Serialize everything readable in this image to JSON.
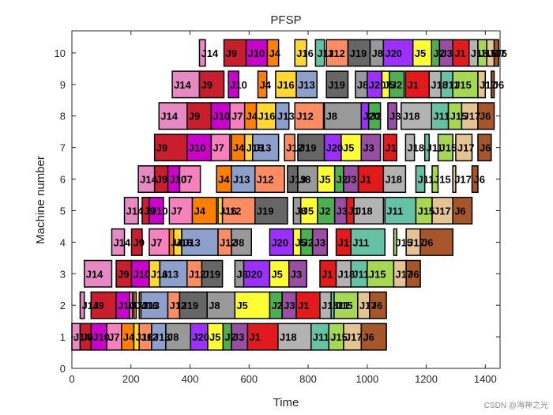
{
  "chart_data": {
    "type": "gantt",
    "title": "PFSP",
    "xlabel": "Time",
    "ylabel": "Machine number",
    "xlim": [
      0,
      1450
    ],
    "ylim": [
      0,
      10.7
    ],
    "xticks": [
      0,
      200,
      400,
      600,
      800,
      1000,
      1200,
      1400
    ],
    "yticks": [
      0,
      1,
      2,
      3,
      4,
      5,
      6,
      7,
      8,
      9,
      10
    ],
    "colors": {
      "J1": "#e31a1c",
      "J2": "#4caf50",
      "J3": "#984ea3",
      "J4": "#ff7f00",
      "J5": "#ffff33",
      "J6": "#a65628",
      "J7": "#f781bf",
      "J8": "#999999",
      "J9": "#c81e2d",
      "J10": "#cc00cc",
      "J11": "#66c2a5",
      "J12": "#fc8d62",
      "J13": "#8da0cb",
      "J14": "#e78ac3",
      "J15": "#a6d854",
      "J16": "#ffd92f",
      "J17": "#e5c494",
      "J18": "#b3b3b3",
      "J19": "#666666",
      "J20": "#9b30ff"
    },
    "tasks": [
      {
        "machine": 1,
        "job": "J14",
        "start": 0,
        "end": 28
      },
      {
        "machine": 1,
        "job": "J9",
        "start": 28,
        "end": 65
      },
      {
        "machine": 1,
        "job": "J10",
        "start": 65,
        "end": 118
      },
      {
        "machine": 1,
        "job": "J7",
        "start": 118,
        "end": 168
      },
      {
        "machine": 1,
        "job": "J4",
        "start": 168,
        "end": 210
      },
      {
        "machine": 1,
        "job": "J16",
        "start": 210,
        "end": 228
      },
      {
        "machine": 1,
        "job": "J12",
        "start": 228,
        "end": 270
      },
      {
        "machine": 1,
        "job": "J13",
        "start": 270,
        "end": 318
      },
      {
        "machine": 1,
        "job": "J8",
        "start": 318,
        "end": 402
      },
      {
        "machine": 1,
        "job": "J20",
        "start": 402,
        "end": 460
      },
      {
        "machine": 1,
        "job": "J5",
        "start": 460,
        "end": 512
      },
      {
        "machine": 1,
        "job": "J2",
        "start": 512,
        "end": 540
      },
      {
        "machine": 1,
        "job": "J3",
        "start": 540,
        "end": 595
      },
      {
        "machine": 1,
        "job": "J1",
        "start": 595,
        "end": 698
      },
      {
        "machine": 1,
        "job": "J18",
        "start": 698,
        "end": 810
      },
      {
        "machine": 1,
        "job": "J11",
        "start": 810,
        "end": 870
      },
      {
        "machine": 1,
        "job": "J15",
        "start": 870,
        "end": 920
      },
      {
        "machine": 1,
        "job": "J17",
        "start": 920,
        "end": 980
      },
      {
        "machine": 1,
        "job": "J6",
        "start": 980,
        "end": 1065
      },
      {
        "machine": 2,
        "job": "J14",
        "start": 28,
        "end": 42
      },
      {
        "machine": 2,
        "job": "J9",
        "start": 65,
        "end": 150
      },
      {
        "machine": 2,
        "job": "J10",
        "start": 150,
        "end": 195
      },
      {
        "machine": 2,
        "job": "J7",
        "start": 195,
        "end": 205
      },
      {
        "machine": 2,
        "job": "J4",
        "start": 210,
        "end": 218
      },
      {
        "machine": 2,
        "job": "J16",
        "start": 228,
        "end": 234
      },
      {
        "machine": 2,
        "job": "J13",
        "start": 234,
        "end": 325
      },
      {
        "machine": 2,
        "job": "J12",
        "start": 325,
        "end": 365
      },
      {
        "machine": 2,
        "job": "J19",
        "start": 365,
        "end": 458
      },
      {
        "machine": 2,
        "job": "J8",
        "start": 458,
        "end": 552
      },
      {
        "machine": 2,
        "job": "J5",
        "start": 552,
        "end": 670
      },
      {
        "machine": 2,
        "job": "J2",
        "start": 670,
        "end": 712
      },
      {
        "machine": 2,
        "job": "J3",
        "start": 712,
        "end": 760
      },
      {
        "machine": 2,
        "job": "J1",
        "start": 760,
        "end": 840
      },
      {
        "machine": 2,
        "job": "J18",
        "start": 840,
        "end": 878
      },
      {
        "machine": 2,
        "job": "J11",
        "start": 878,
        "end": 888
      },
      {
        "machine": 2,
        "job": "J15",
        "start": 888,
        "end": 968
      },
      {
        "machine": 2,
        "job": "J17",
        "start": 968,
        "end": 1008
      },
      {
        "machine": 2,
        "job": "J6",
        "start": 1008,
        "end": 1065
      },
      {
        "machine": 3,
        "job": "J14",
        "start": 42,
        "end": 135
      },
      {
        "machine": 3,
        "job": "J9",
        "start": 150,
        "end": 202
      },
      {
        "machine": 3,
        "job": "J10",
        "start": 202,
        "end": 262
      },
      {
        "machine": 3,
        "job": "J16",
        "start": 262,
        "end": 298
      },
      {
        "machine": 3,
        "job": "J13",
        "start": 298,
        "end": 390
      },
      {
        "machine": 3,
        "job": "J12",
        "start": 390,
        "end": 440
      },
      {
        "machine": 3,
        "job": "J19",
        "start": 440,
        "end": 510
      },
      {
        "machine": 3,
        "job": "J8",
        "start": 552,
        "end": 582
      },
      {
        "machine": 3,
        "job": "J20",
        "start": 582,
        "end": 670
      },
      {
        "machine": 3,
        "job": "J5",
        "start": 670,
        "end": 735
      },
      {
        "machine": 3,
        "job": "J3",
        "start": 735,
        "end": 795
      },
      {
        "machine": 3,
        "job": "J1",
        "start": 840,
        "end": 895
      },
      {
        "machine": 3,
        "job": "J18",
        "start": 895,
        "end": 945
      },
      {
        "machine": 3,
        "job": "J11",
        "start": 945,
        "end": 1000
      },
      {
        "machine": 3,
        "job": "J15",
        "start": 1000,
        "end": 1090
      },
      {
        "machine": 3,
        "job": "J17",
        "start": 1090,
        "end": 1132
      },
      {
        "machine": 3,
        "job": "J6",
        "start": 1132,
        "end": 1180
      },
      {
        "machine": 4,
        "job": "J14",
        "start": 135,
        "end": 178
      },
      {
        "machine": 4,
        "job": "J9",
        "start": 202,
        "end": 238
      },
      {
        "machine": 4,
        "job": "J7",
        "start": 262,
        "end": 330
      },
      {
        "machine": 4,
        "job": "J4",
        "start": 330,
        "end": 345
      },
      {
        "machine": 4,
        "job": "J16",
        "start": 345,
        "end": 372
      },
      {
        "machine": 4,
        "job": "J13",
        "start": 372,
        "end": 495
      },
      {
        "machine": 4,
        "job": "J12",
        "start": 495,
        "end": 540
      },
      {
        "machine": 4,
        "job": "J8",
        "start": 540,
        "end": 608
      },
      {
        "machine": 4,
        "job": "J20",
        "start": 670,
        "end": 750
      },
      {
        "machine": 4,
        "job": "J5",
        "start": 750,
        "end": 775
      },
      {
        "machine": 4,
        "job": "J2",
        "start": 775,
        "end": 815
      },
      {
        "machine": 4,
        "job": "J3",
        "start": 815,
        "end": 865
      },
      {
        "machine": 4,
        "job": "J1",
        "start": 895,
        "end": 945
      },
      {
        "machine": 4,
        "job": "J11",
        "start": 945,
        "end": 1060
      },
      {
        "machine": 4,
        "job": "J15",
        "start": 1090,
        "end": 1100
      },
      {
        "machine": 4,
        "job": "J17",
        "start": 1132,
        "end": 1180
      },
      {
        "machine": 4,
        "job": "J6",
        "start": 1180,
        "end": 1290
      },
      {
        "machine": 5,
        "job": "J14",
        "start": 178,
        "end": 225
      },
      {
        "machine": 5,
        "job": "J9",
        "start": 238,
        "end": 262
      },
      {
        "machine": 5,
        "job": "J10",
        "start": 262,
        "end": 310
      },
      {
        "machine": 5,
        "job": "J7",
        "start": 330,
        "end": 408
      },
      {
        "machine": 5,
        "job": "J4",
        "start": 408,
        "end": 490
      },
      {
        "machine": 5,
        "job": "J16",
        "start": 495,
        "end": 510
      },
      {
        "machine": 5,
        "job": "J12",
        "start": 510,
        "end": 620
      },
      {
        "machine": 5,
        "job": "J19",
        "start": 620,
        "end": 730
      },
      {
        "machine": 5,
        "job": "J8",
        "start": 750,
        "end": 775
      },
      {
        "machine": 5,
        "job": "J5",
        "start": 775,
        "end": 832
      },
      {
        "machine": 5,
        "job": "J2",
        "start": 832,
        "end": 890
      },
      {
        "machine": 5,
        "job": "J3",
        "start": 890,
        "end": 930
      },
      {
        "machine": 5,
        "job": "J1",
        "start": 930,
        "end": 955
      },
      {
        "machine": 5,
        "job": "J18",
        "start": 955,
        "end": 1055
      },
      {
        "machine": 5,
        "job": "J11",
        "start": 1060,
        "end": 1165
      },
      {
        "machine": 5,
        "job": "J15",
        "start": 1165,
        "end": 1220
      },
      {
        "machine": 5,
        "job": "J17",
        "start": 1220,
        "end": 1290
      },
      {
        "machine": 5,
        "job": "J6",
        "start": 1290,
        "end": 1355
      },
      {
        "machine": 6,
        "job": "J14",
        "start": 225,
        "end": 280
      },
      {
        "machine": 6,
        "job": "J9",
        "start": 280,
        "end": 325
      },
      {
        "machine": 6,
        "job": "J10",
        "start": 325,
        "end": 365
      },
      {
        "machine": 6,
        "job": "J7",
        "start": 365,
        "end": 435
      },
      {
        "machine": 6,
        "job": "J4",
        "start": 490,
        "end": 540
      },
      {
        "machine": 6,
        "job": "J13",
        "start": 540,
        "end": 620
      },
      {
        "machine": 6,
        "job": "J12",
        "start": 620,
        "end": 720
      },
      {
        "machine": 6,
        "job": "J19",
        "start": 730,
        "end": 765
      },
      {
        "machine": 6,
        "job": "J8",
        "start": 765,
        "end": 832
      },
      {
        "machine": 6,
        "job": "J5",
        "start": 832,
        "end": 890
      },
      {
        "machine": 6,
        "job": "J2",
        "start": 890,
        "end": 920
      },
      {
        "machine": 6,
        "job": "J3",
        "start": 920,
        "end": 970
      },
      {
        "machine": 6,
        "job": "J1",
        "start": 970,
        "end": 1055
      },
      {
        "machine": 6,
        "job": "J18",
        "start": 1055,
        "end": 1130
      },
      {
        "machine": 6,
        "job": "J11",
        "start": 1165,
        "end": 1195
      },
      {
        "machine": 6,
        "job": "J15",
        "start": 1220,
        "end": 1240
      },
      {
        "machine": 6,
        "job": "J17",
        "start": 1290,
        "end": 1300
      },
      {
        "machine": 6,
        "job": "J6",
        "start": 1355,
        "end": 1375
      },
      {
        "machine": 7,
        "job": "J9",
        "start": 280,
        "end": 390
      },
      {
        "machine": 7,
        "job": "J10",
        "start": 390,
        "end": 472
      },
      {
        "machine": 7,
        "job": "J7",
        "start": 472,
        "end": 535
      },
      {
        "machine": 7,
        "job": "J4",
        "start": 540,
        "end": 585
      },
      {
        "machine": 7,
        "job": "J16",
        "start": 585,
        "end": 612
      },
      {
        "machine": 7,
        "job": "J13",
        "start": 612,
        "end": 700
      },
      {
        "machine": 7,
        "job": "J12",
        "start": 720,
        "end": 755
      },
      {
        "machine": 7,
        "job": "J19",
        "start": 765,
        "end": 855
      },
      {
        "machine": 7,
        "job": "J20",
        "start": 855,
        "end": 912
      },
      {
        "machine": 7,
        "job": "J5",
        "start": 912,
        "end": 980
      },
      {
        "machine": 7,
        "job": "J3",
        "start": 980,
        "end": 1045
      },
      {
        "machine": 7,
        "job": "J1",
        "start": 1055,
        "end": 1100
      },
      {
        "machine": 7,
        "job": "J18",
        "start": 1130,
        "end": 1160
      },
      {
        "machine": 7,
        "job": "J11",
        "start": 1195,
        "end": 1210
      },
      {
        "machine": 7,
        "job": "J15",
        "start": 1240,
        "end": 1290
      },
      {
        "machine": 7,
        "job": "J17",
        "start": 1300,
        "end": 1355
      },
      {
        "machine": 7,
        "job": "J6",
        "start": 1375,
        "end": 1420
      },
      {
        "machine": 8,
        "job": "J14",
        "start": 295,
        "end": 390
      },
      {
        "machine": 8,
        "job": "J9",
        "start": 390,
        "end": 472
      },
      {
        "machine": 8,
        "job": "J10",
        "start": 472,
        "end": 535
      },
      {
        "machine": 8,
        "job": "J7",
        "start": 535,
        "end": 585
      },
      {
        "machine": 8,
        "job": "J4",
        "start": 585,
        "end": 625
      },
      {
        "machine": 8,
        "job": "J16",
        "start": 625,
        "end": 690
      },
      {
        "machine": 8,
        "job": "J13",
        "start": 690,
        "end": 735
      },
      {
        "machine": 8,
        "job": "J12",
        "start": 755,
        "end": 852
      },
      {
        "machine": 8,
        "job": "J8",
        "start": 855,
        "end": 980
      },
      {
        "machine": 8,
        "job": "J20",
        "start": 980,
        "end": 1005
      },
      {
        "machine": 8,
        "job": "J2",
        "start": 1005,
        "end": 1045
      },
      {
        "machine": 8,
        "job": "J3",
        "start": 1070,
        "end": 1100
      },
      {
        "machine": 8,
        "job": "J18",
        "start": 1115,
        "end": 1218
      },
      {
        "machine": 8,
        "job": "J11",
        "start": 1218,
        "end": 1275
      },
      {
        "machine": 8,
        "job": "J15",
        "start": 1275,
        "end": 1320
      },
      {
        "machine": 8,
        "job": "J17",
        "start": 1320,
        "end": 1375
      },
      {
        "machine": 8,
        "job": "J6",
        "start": 1375,
        "end": 1430
      },
      {
        "machine": 9,
        "job": "J14",
        "start": 340,
        "end": 432
      },
      {
        "machine": 9,
        "job": "J9",
        "start": 432,
        "end": 515
      },
      {
        "machine": 9,
        "job": "J10",
        "start": 530,
        "end": 565
      },
      {
        "machine": 9,
        "job": "J4",
        "start": 630,
        "end": 660
      },
      {
        "machine": 9,
        "job": "J16",
        "start": 690,
        "end": 760
      },
      {
        "machine": 9,
        "job": "J13",
        "start": 760,
        "end": 830
      },
      {
        "machine": 9,
        "job": "J19",
        "start": 862,
        "end": 935
      },
      {
        "machine": 9,
        "job": "J8",
        "start": 960,
        "end": 1000
      },
      {
        "machine": 9,
        "job": "J20",
        "start": 1000,
        "end": 1050
      },
      {
        "machine": 9,
        "job": "J5",
        "start": 1050,
        "end": 1075
      },
      {
        "machine": 9,
        "job": "J2",
        "start": 1075,
        "end": 1125
      },
      {
        "machine": 9,
        "job": "J1",
        "start": 1130,
        "end": 1210
      },
      {
        "machine": 9,
        "job": "J18",
        "start": 1210,
        "end": 1250
      },
      {
        "machine": 9,
        "job": "J11",
        "start": 1250,
        "end": 1290
      },
      {
        "machine": 9,
        "job": "J15",
        "start": 1290,
        "end": 1375
      },
      {
        "machine": 9,
        "job": "J17",
        "start": 1375,
        "end": 1400
      },
      {
        "machine": 9,
        "job": "J6",
        "start": 1420,
        "end": 1430
      },
      {
        "machine": 10,
        "job": "J14",
        "start": 432,
        "end": 452
      },
      {
        "machine": 10,
        "job": "J9",
        "start": 515,
        "end": 590
      },
      {
        "machine": 10,
        "job": "J10",
        "start": 590,
        "end": 662
      },
      {
        "machine": 10,
        "job": "J4",
        "start": 662,
        "end": 700
      },
      {
        "machine": 10,
        "job": "J16",
        "start": 755,
        "end": 795
      },
      {
        "machine": 10,
        "job": "J11",
        "start": 825,
        "end": 855
      },
      {
        "machine": 10,
        "job": "J12",
        "start": 862,
        "end": 935
      },
      {
        "machine": 10,
        "job": "J19",
        "start": 935,
        "end": 1010
      },
      {
        "machine": 10,
        "job": "J8",
        "start": 1010,
        "end": 1055
      },
      {
        "machine": 10,
        "job": "J20",
        "start": 1055,
        "end": 1155
      },
      {
        "machine": 10,
        "job": "J5",
        "start": 1155,
        "end": 1218
      },
      {
        "machine": 10,
        "job": "J2",
        "start": 1218,
        "end": 1245
      },
      {
        "machine": 10,
        "job": "J3",
        "start": 1245,
        "end": 1290
      },
      {
        "machine": 10,
        "job": "J1",
        "start": 1290,
        "end": 1345
      },
      {
        "machine": 10,
        "job": "J18",
        "start": 1345,
        "end": 1375
      },
      {
        "machine": 10,
        "job": "J15",
        "start": 1375,
        "end": 1405
      },
      {
        "machine": 10,
        "job": "J17",
        "start": 1405,
        "end": 1430
      },
      {
        "machine": 10,
        "job": "J6",
        "start": 1430,
        "end": 1445
      }
    ]
  },
  "watermark": "CSDN @海神之光"
}
